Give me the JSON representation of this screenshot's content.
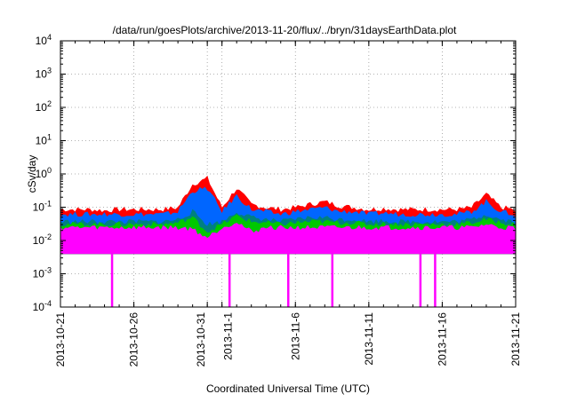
{
  "chart_data": {
    "type": "line",
    "title": "/data/run/goesPlots/archive/2013-11-20/flux/../bryn/31daysEarthData.plot",
    "xlabel": "Coordinated Universal Time (UTC)",
    "ylabel": "cSv/day",
    "y_scale": "log",
    "ylim": [
      0.0001,
      10000
    ],
    "xlim": [
      "2013-10-21",
      "2013-11-21"
    ],
    "grid": true,
    "grid_style": "dotted",
    "legend": "none",
    "y_ticks": [
      {
        "value": 0.0001,
        "mantissa": "10",
        "exponent": "-4"
      },
      {
        "value": 0.001,
        "mantissa": "10",
        "exponent": "-3"
      },
      {
        "value": 0.01,
        "mantissa": "10",
        "exponent": "-2"
      },
      {
        "value": 0.1,
        "mantissa": "10",
        "exponent": "-1"
      },
      {
        "value": 1,
        "mantissa": "10",
        "exponent": "0"
      },
      {
        "value": 10,
        "mantissa": "10",
        "exponent": "1"
      },
      {
        "value": 100,
        "mantissa": "10",
        "exponent": "2"
      },
      {
        "value": 1000,
        "mantissa": "10",
        "exponent": "3"
      },
      {
        "value": 10000,
        "mantissa": "10",
        "exponent": "4"
      }
    ],
    "x_ticks": [
      "2013-10-21",
      "2013-10-26",
      "2013-10-31",
      "2013-11-1",
      "2013-11-6",
      "2013-11-11",
      "2013-11-16",
      "2013-11-21"
    ],
    "x": [
      "2013-10-21",
      "2013-10-22",
      "2013-10-23",
      "2013-10-24",
      "2013-10-25",
      "2013-10-26",
      "2013-10-27",
      "2013-10-28",
      "2013-10-29",
      "2013-10-30",
      "2013-10-31",
      "2013-11-01",
      "2013-11-02",
      "2013-11-03",
      "2013-11-04",
      "2013-11-05",
      "2013-11-06",
      "2013-11-07",
      "2013-11-08",
      "2013-11-09",
      "2013-11-10",
      "2013-11-11",
      "2013-11-12",
      "2013-11-13",
      "2013-11-14",
      "2013-11-15",
      "2013-11-16",
      "2013-11-17",
      "2013-11-18",
      "2013-11-19",
      "2013-11-20",
      "2013-11-21"
    ],
    "series": [
      {
        "color": "#ff0000",
        "values": [
          0.07,
          0.07,
          0.07,
          0.065,
          0.07,
          0.07,
          0.07,
          0.07,
          0.08,
          0.4,
          0.6,
          0.08,
          0.3,
          0.1,
          0.08,
          0.07,
          0.08,
          0.1,
          0.12,
          0.09,
          0.08,
          0.07,
          0.075,
          0.07,
          0.07,
          0.07,
          0.07,
          0.07,
          0.08,
          0.2,
          0.08,
          0.07
        ]
      },
      {
        "color": "#0066ff",
        "values": [
          0.05,
          0.05,
          0.05,
          0.05,
          0.05,
          0.05,
          0.05,
          0.05,
          0.06,
          0.25,
          0.3,
          0.06,
          0.18,
          0.07,
          0.06,
          0.05,
          0.06,
          0.07,
          0.08,
          0.06,
          0.06,
          0.05,
          0.055,
          0.05,
          0.05,
          0.05,
          0.05,
          0.05,
          0.06,
          0.12,
          0.06,
          0.05
        ]
      },
      {
        "color": "#008080",
        "values": [
          0.03,
          0.03,
          0.03,
          0.03,
          0.03,
          0.03,
          0.03,
          0.03,
          0.035,
          0.06,
          0.025,
          0.03,
          0.06,
          0.04,
          0.035,
          0.03,
          0.035,
          0.04,
          0.04,
          0.035,
          0.035,
          0.03,
          0.032,
          0.03,
          0.03,
          0.03,
          0.03,
          0.03,
          0.035,
          0.05,
          0.035,
          0.03
        ]
      },
      {
        "color": "#00c800",
        "values": [
          0.025,
          0.025,
          0.025,
          0.025,
          0.025,
          0.025,
          0.025,
          0.025,
          0.028,
          0.04,
          0.015,
          0.025,
          0.045,
          0.03,
          0.028,
          0.025,
          0.028,
          0.03,
          0.03,
          0.028,
          0.028,
          0.025,
          0.026,
          0.025,
          0.025,
          0.025,
          0.025,
          0.025,
          0.028,
          0.035,
          0.028,
          0.025
        ]
      },
      {
        "color": "#ff00ff",
        "values": [
          0.02,
          0.02,
          0.02,
          0.02,
          0.02,
          0.02,
          0.02,
          0.02,
          0.02,
          0.018,
          0.01,
          0.02,
          0.03,
          0.015,
          0.02,
          0.02,
          0.02,
          0.02,
          0.02,
          0.02,
          0.02,
          0.02,
          0.02,
          0.02,
          0.02,
          0.02,
          0.02,
          0.02,
          0.02,
          0.025,
          0.02,
          0.02
        ],
        "floor": 0.004,
        "dropouts": [
          "2013-10-24",
          "2013-11-01",
          "2013-11-05",
          "2013-11-08",
          "2013-11-14",
          "2013-11-15"
        ]
      }
    ]
  }
}
